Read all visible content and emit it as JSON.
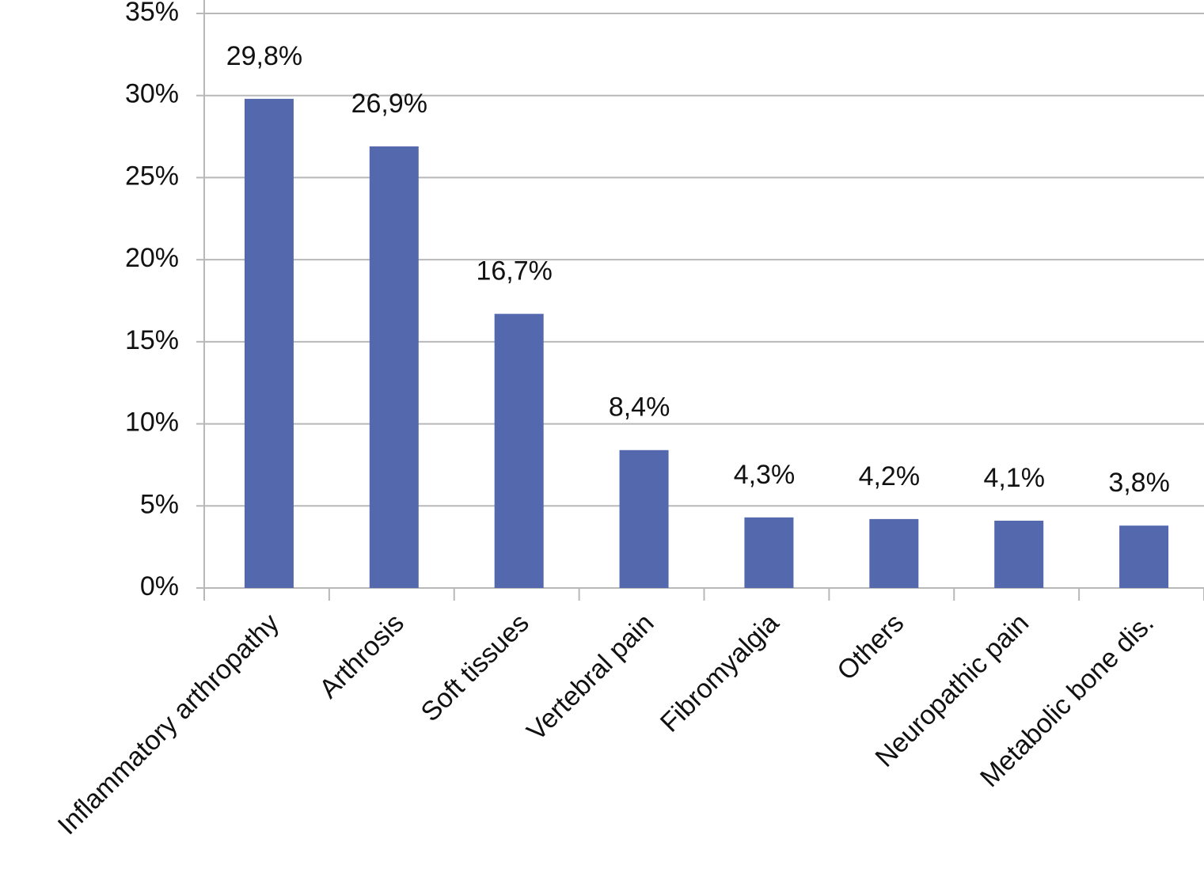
{
  "chart_data": {
    "type": "bar",
    "categories": [
      "Inflammatory arthropathy",
      "Arthrosis",
      "Soft tissues",
      "Vertebral pain",
      "Fibromyalgia",
      "Others",
      "Neuropathic pain",
      "Metabolic bone dis."
    ],
    "values": [
      29.8,
      26.9,
      16.7,
      8.4,
      4.3,
      4.2,
      4.1,
      3.8
    ],
    "value_labels": [
      "29,8%",
      "26,9%",
      "16,7%",
      "8,4%",
      "4,3%",
      "4,2%",
      "4,1%",
      "3,8%"
    ],
    "color": "#5468ae",
    "ylim": [
      0,
      35
    ],
    "yticks": [
      {
        "value": 0,
        "label": "0%"
      },
      {
        "value": 5,
        "label": "5%"
      },
      {
        "value": 10,
        "label": "10%"
      },
      {
        "value": 15,
        "label": "15%"
      },
      {
        "value": 20,
        "label": "20%"
      },
      {
        "value": 25,
        "label": "25%"
      },
      {
        "value": 30,
        "label": "30%"
      },
      {
        "value": 35,
        "label": "35%"
      }
    ],
    "grid": true
  }
}
